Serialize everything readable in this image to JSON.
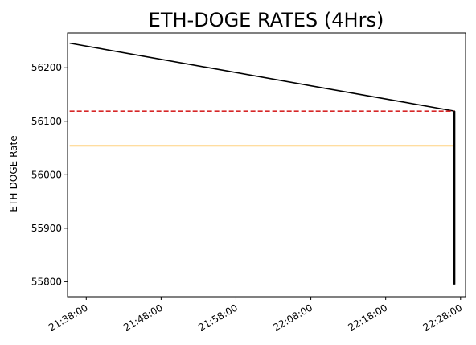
{
  "chart_data": {
    "type": "line",
    "title": "ETH-DOGE RATES (4Hrs)",
    "xlabel": "",
    "ylabel": "ETH-DOGE Rate",
    "x_ticks": [
      "21:38:00",
      "21:48:00",
      "21:58:00",
      "22:08:00",
      "22:18:00",
      "22:28:00"
    ],
    "y_ticks": [
      55800,
      55900,
      56000,
      56100,
      56200
    ],
    "xlim": [
      "21:35:30",
      "22:28:40"
    ],
    "ylim": [
      55772,
      56265
    ],
    "grid": false,
    "series": [
      {
        "color": "#000000",
        "style": "solid",
        "x": [
          "21:35:47",
          "22:27:10",
          "22:27:10"
        ],
        "y": [
          56246,
          56119,
          55795
        ]
      },
      {
        "color": "#d62728",
        "style": "dashed",
        "x": [
          "21:35:47",
          "22:27:10"
        ],
        "y": [
          56119,
          56119
        ]
      },
      {
        "color": "#ffa500",
        "style": "solid",
        "x": [
          "21:35:47",
          "22:27:10"
        ],
        "y": [
          56054,
          56054
        ]
      }
    ]
  }
}
